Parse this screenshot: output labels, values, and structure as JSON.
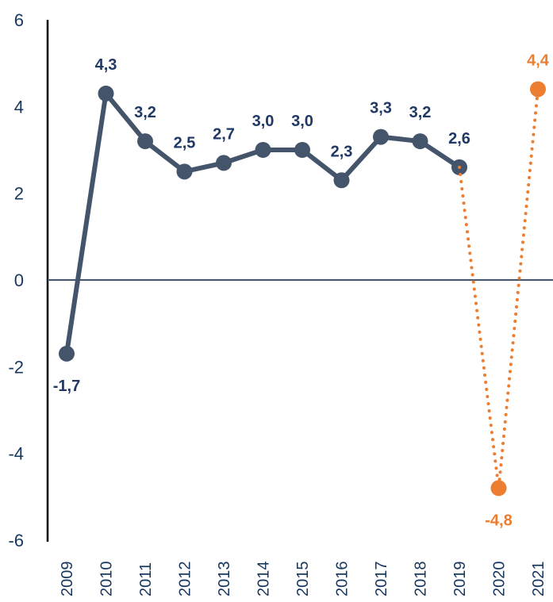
{
  "chart_data": {
    "type": "line",
    "title": "",
    "xlabel": "",
    "ylabel": "",
    "ylim": [
      -6,
      6
    ],
    "yticks": [
      "6",
      "4",
      "2",
      "0",
      "-2",
      "-4",
      "-6"
    ],
    "categories": [
      "2009",
      "2010",
      "2011",
      "2012",
      "2013",
      "2014",
      "2015",
      "2016",
      "2017",
      "2018",
      "2019",
      "2020",
      "2021"
    ],
    "series": [
      {
        "style": "solid",
        "color": "#44546a",
        "label_color": "#1f3864",
        "x": [
          "2009",
          "2010",
          "2011",
          "2012",
          "2013",
          "2014",
          "2015",
          "2016",
          "2017",
          "2018",
          "2019"
        ],
        "values": [
          -1.7,
          4.3,
          3.2,
          2.5,
          2.7,
          3.0,
          3.0,
          2.3,
          3.3,
          3.2,
          2.6
        ],
        "labels": [
          "-1,7",
          "4,3",
          "3,2",
          "2,5",
          "2,7",
          "3,0",
          "3,0",
          "2,3",
          "3,3",
          "3,2",
          "2,6"
        ]
      },
      {
        "style": "dotted",
        "color": "#ed7d31",
        "label_color": "#ed7d31",
        "x": [
          "2019",
          "2020",
          "2021"
        ],
        "values": [
          2.6,
          -4.8,
          4.4
        ],
        "labels": [
          "",
          "-4,8",
          "4,4"
        ]
      }
    ],
    "grid": false,
    "legend": "none"
  }
}
